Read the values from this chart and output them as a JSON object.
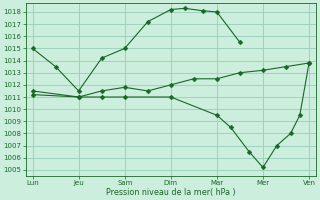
{
  "background_color": "#cceedd",
  "grid_color": "#99ccbb",
  "line_color": "#1a6628",
  "xlabel": "Pression niveau de la mer( hPa )",
  "ylim_min": 1004.5,
  "ylim_max": 1018.7,
  "yticks": [
    1005,
    1006,
    1007,
    1008,
    1009,
    1010,
    1011,
    1012,
    1013,
    1014,
    1015,
    1016,
    1017,
    1018
  ],
  "xtick_labels": [
    "Lun",
    "Jeu",
    "Sam",
    "Dim",
    "Mar",
    "Mer",
    "Ven"
  ],
  "xtick_positions": [
    0,
    1,
    2,
    3,
    4,
    5,
    6
  ],
  "series": [
    {
      "x": [
        0,
        0.5,
        1.0,
        1.5,
        2.0,
        2.5,
        3.0,
        3.3,
        3.7,
        4.0,
        4.5
      ],
      "y": [
        1015.0,
        1013.5,
        1011.5,
        1014.2,
        1015.0,
        1017.2,
        1018.2,
        1018.3,
        1018.1,
        1018.0,
        1015.5
      ]
    },
    {
      "x": [
        0,
        1.0,
        1.5,
        2.0,
        2.5,
        3.0,
        3.5,
        4.0,
        4.5,
        5.0,
        5.5,
        6.0
      ],
      "y": [
        1011.5,
        1011.0,
        1011.5,
        1011.8,
        1011.5,
        1012.0,
        1012.5,
        1012.5,
        1013.0,
        1013.2,
        1013.5,
        1013.8
      ]
    },
    {
      "x": [
        0,
        1.0,
        1.5,
        2.0,
        3.0,
        4.0,
        4.3,
        4.7,
        5.0,
        5.3,
        5.6,
        5.8,
        6.0
      ],
      "y": [
        1011.2,
        1011.0,
        1011.0,
        1011.0,
        1011.0,
        1009.5,
        1008.5,
        1006.5,
        1005.2,
        1007.0,
        1008.0,
        1009.5,
        1013.8
      ]
    }
  ]
}
